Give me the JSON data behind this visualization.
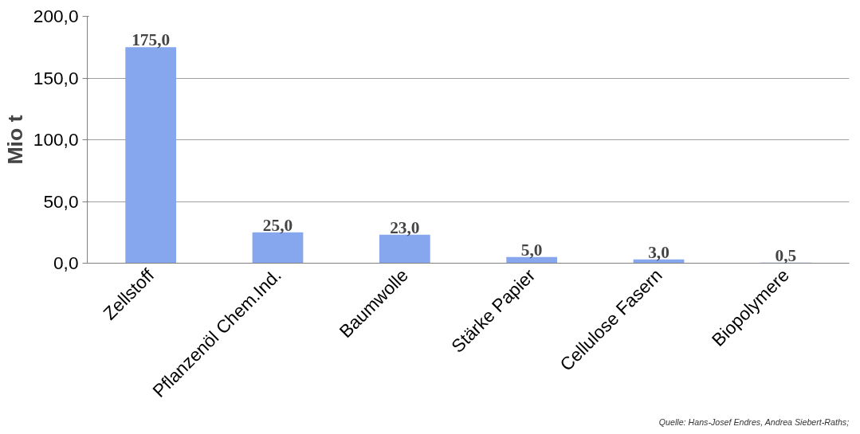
{
  "chart_data": {
    "type": "bar",
    "ylabel": "Mio t",
    "categories": [
      "Zellstoff",
      "Pflanzenöl Chem.Ind.",
      "Baumwolle",
      "Stärke Papier",
      "Cellulose Fasern",
      "Biopolymere"
    ],
    "values": [
      175,
      25,
      23,
      5,
      3,
      0.5
    ],
    "value_labels": [
      "175,0",
      "25,0",
      "23,0",
      "5,0",
      "3,0",
      "0,5"
    ],
    "color": "#86a6ee",
    "ylim": [
      0,
      200
    ],
    "yticks": [
      {
        "value": 0,
        "label": "0,0"
      },
      {
        "value": 50,
        "label": "50,0"
      },
      {
        "value": 100,
        "label": "100,0"
      },
      {
        "value": 150,
        "label": "150,0"
      },
      {
        "value": 200,
        "label": "200,0"
      }
    ],
    "grid": "y",
    "annotations": [
      "Quelle: Hans-Josef Endres, Andrea Siebert-Raths;"
    ]
  }
}
